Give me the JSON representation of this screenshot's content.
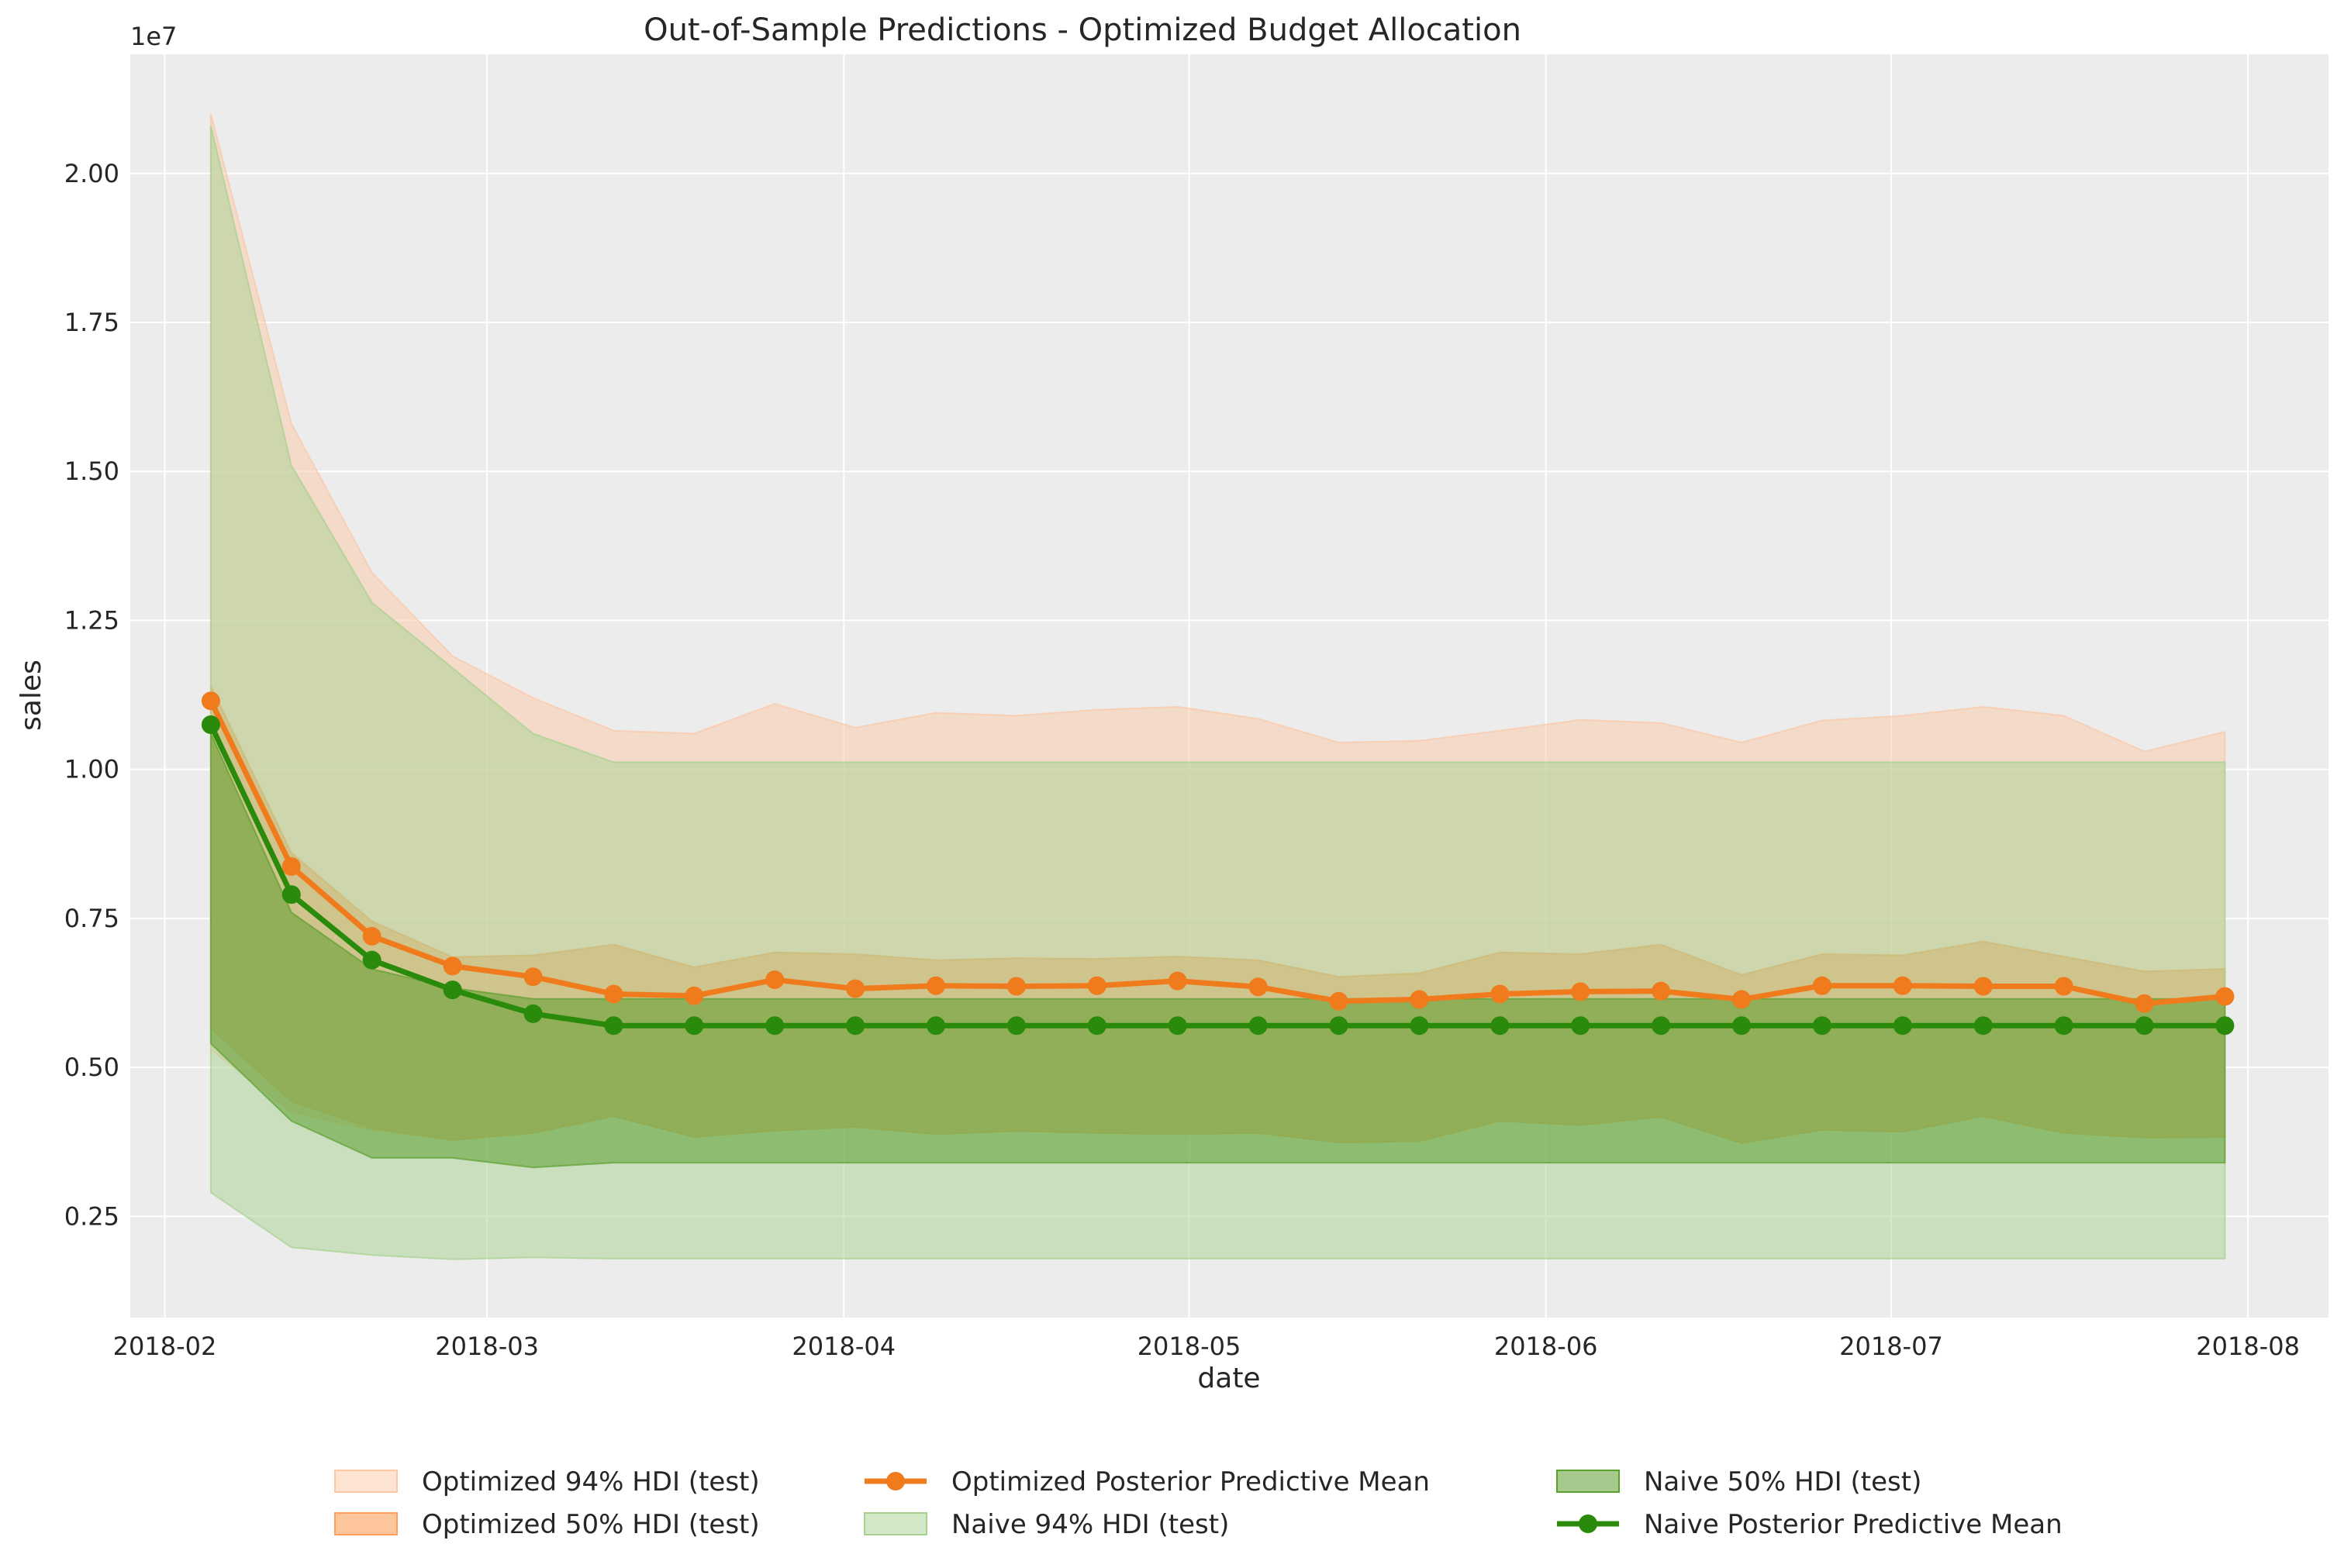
{
  "chart_data": {
    "type": "line",
    "title": "Out-of-Sample Predictions - Optimized Budget Allocation",
    "xlabel": "date",
    "ylabel": "sales",
    "y_offset_label": "1e7",
    "y_scale": 10000000,
    "ylim": [
      0.08,
      2.2
    ],
    "xlim": [
      "2018-01-29",
      "2018-08-08"
    ],
    "grid": true,
    "legend_placement": "bottom-center",
    "x_ticks": [
      {
        "date": "2018-02-01",
        "label": "2018-02"
      },
      {
        "date": "2018-03-01",
        "label": "2018-03"
      },
      {
        "date": "2018-04-01",
        "label": "2018-04"
      },
      {
        "date": "2018-05-01",
        "label": "2018-05"
      },
      {
        "date": "2018-06-01",
        "label": "2018-06"
      },
      {
        "date": "2018-07-01",
        "label": "2018-07"
      },
      {
        "date": "2018-08-01",
        "label": "2018-08"
      }
    ],
    "y_ticks": [
      {
        "value": 0.25,
        "label": "0.25"
      },
      {
        "value": 0.5,
        "label": "0.50"
      },
      {
        "value": 0.75,
        "label": "0.75"
      },
      {
        "value": 1.0,
        "label": "1.00"
      },
      {
        "value": 1.25,
        "label": "1.25"
      },
      {
        "value": 1.5,
        "label": "1.50"
      },
      {
        "value": 1.75,
        "label": "1.75"
      },
      {
        "value": 2.0,
        "label": "2.00"
      }
    ],
    "x": [
      "2018-02-05",
      "2018-02-12",
      "2018-02-19",
      "2018-02-26",
      "2018-03-05",
      "2018-03-12",
      "2018-03-19",
      "2018-03-26",
      "2018-04-02",
      "2018-04-09",
      "2018-04-16",
      "2018-04-23",
      "2018-04-30",
      "2018-05-07",
      "2018-05-14",
      "2018-05-21",
      "2018-05-28",
      "2018-06-04",
      "2018-06-11",
      "2018-06-18",
      "2018-06-25",
      "2018-07-02",
      "2018-07-09",
      "2018-07-16",
      "2018-07-23",
      "2018-07-30"
    ],
    "colors": {
      "optimized_94": "#fbc8a6",
      "optimized_50": "#fb9f5a",
      "optimized_line": "#f07b1d",
      "naive_94": "#a6d28f",
      "naive_50": "#5c9f2f",
      "naive_line": "#2a8a0c",
      "plot_bg": "#ececec",
      "grid": "#ffffff"
    },
    "series": [
      {
        "name": "Optimized 94% HDI (test)",
        "kind": "band",
        "color_key": "optimized_94",
        "opacity": 0.5,
        "upper": [
          2.1,
          1.58,
          1.33,
          1.19,
          1.12,
          1.065,
          1.06,
          1.11,
          1.07,
          1.095,
          1.09,
          1.1,
          1.105,
          1.085,
          1.045,
          1.048,
          1.065,
          1.083,
          1.078,
          1.045,
          1.082,
          1.09,
          1.105,
          1.09,
          1.03,
          1.063
        ],
        "lower": [
          0.53,
          0.425,
          0.395,
          0.378,
          0.39,
          0.418,
          0.383,
          0.394,
          0.4,
          0.388,
          0.393,
          0.39,
          0.388,
          0.39,
          0.374,
          0.376,
          0.41,
          0.403,
          0.417,
          0.373,
          0.395,
          0.392,
          0.418,
          0.39,
          0.382,
          0.383
        ]
      },
      {
        "name": "Optimized 50% HDI (test)",
        "kind": "band",
        "color_key": "optimized_50",
        "opacity": 0.6,
        "upper": [
          1.14,
          0.86,
          0.745,
          0.685,
          0.688,
          0.706,
          0.668,
          0.693,
          0.69,
          0.68,
          0.683,
          0.682,
          0.686,
          0.68,
          0.652,
          0.658,
          0.693,
          0.69,
          0.706,
          0.655,
          0.69,
          0.688,
          0.711,
          0.686,
          0.661,
          0.665
        ],
        "lower": [
          0.565,
          0.443,
          0.398,
          0.378,
          0.39,
          0.418,
          0.383,
          0.394,
          0.4,
          0.388,
          0.393,
          0.39,
          0.388,
          0.39,
          0.374,
          0.376,
          0.41,
          0.403,
          0.417,
          0.373,
          0.395,
          0.392,
          0.418,
          0.39,
          0.382,
          0.383
        ]
      },
      {
        "name": "Optimized Posterior Predictive Mean",
        "kind": "line",
        "color_key": "optimized_line",
        "values": [
          1.115,
          0.837,
          0.72,
          0.67,
          0.652,
          0.623,
          0.62,
          0.647,
          0.632,
          0.637,
          0.636,
          0.637,
          0.645,
          0.635,
          0.611,
          0.614,
          0.623,
          0.627,
          0.628,
          0.614,
          0.637,
          0.637,
          0.636,
          0.636,
          0.607,
          0.619
        ]
      },
      {
        "name": "Naive 94% HDI (test)",
        "kind": "band",
        "color_key": "naive_94",
        "opacity": 0.5,
        "upper": [
          2.08,
          1.51,
          1.28,
          1.17,
          1.06,
          1.012,
          1.012,
          1.012,
          1.012,
          1.012,
          1.012,
          1.012,
          1.012,
          1.012,
          1.012,
          1.012,
          1.012,
          1.012,
          1.012,
          1.012,
          1.012,
          1.012,
          1.012,
          1.012,
          1.012,
          1.012
        ],
        "lower": [
          0.29,
          0.198,
          0.185,
          0.178,
          0.181,
          0.179,
          0.179,
          0.179,
          0.179,
          0.179,
          0.179,
          0.179,
          0.179,
          0.179,
          0.179,
          0.179,
          0.179,
          0.179,
          0.179,
          0.179,
          0.179,
          0.179,
          0.179,
          0.179,
          0.179,
          0.179
        ]
      },
      {
        "name": "Naive 50% HDI (test)",
        "kind": "band",
        "color_key": "naive_50",
        "opacity": 0.55,
        "upper": [
          1.06,
          0.76,
          0.665,
          0.633,
          0.615,
          0.615,
          0.615,
          0.615,
          0.615,
          0.615,
          0.615,
          0.615,
          0.615,
          0.615,
          0.615,
          0.615,
          0.615,
          0.615,
          0.615,
          0.615,
          0.615,
          0.615,
          0.615,
          0.615,
          0.615,
          0.615
        ],
        "lower": [
          0.54,
          0.41,
          0.348,
          0.348,
          0.332,
          0.34,
          0.34,
          0.34,
          0.34,
          0.34,
          0.34,
          0.34,
          0.34,
          0.34,
          0.34,
          0.34,
          0.34,
          0.34,
          0.34,
          0.34,
          0.34,
          0.34,
          0.34,
          0.34,
          0.34,
          0.34
        ]
      },
      {
        "name": "Naive Posterior Predictive Mean",
        "kind": "line",
        "color_key": "naive_line",
        "values": [
          1.075,
          0.79,
          0.68,
          0.63,
          0.59,
          0.57,
          0.57,
          0.57,
          0.57,
          0.57,
          0.57,
          0.57,
          0.57,
          0.57,
          0.57,
          0.57,
          0.57,
          0.57,
          0.57,
          0.57,
          0.57,
          0.57,
          0.57,
          0.57,
          0.57,
          0.57
        ]
      }
    ],
    "legend": {
      "columns": [
        [
          "Optimized 94% HDI (test)",
          "Optimized 50% HDI (test)"
        ],
        [
          "Optimized Posterior Predictive Mean",
          "Naive 94% HDI (test)"
        ],
        [
          "Naive 50% HDI (test)",
          "Naive Posterior Predictive Mean"
        ]
      ]
    }
  }
}
